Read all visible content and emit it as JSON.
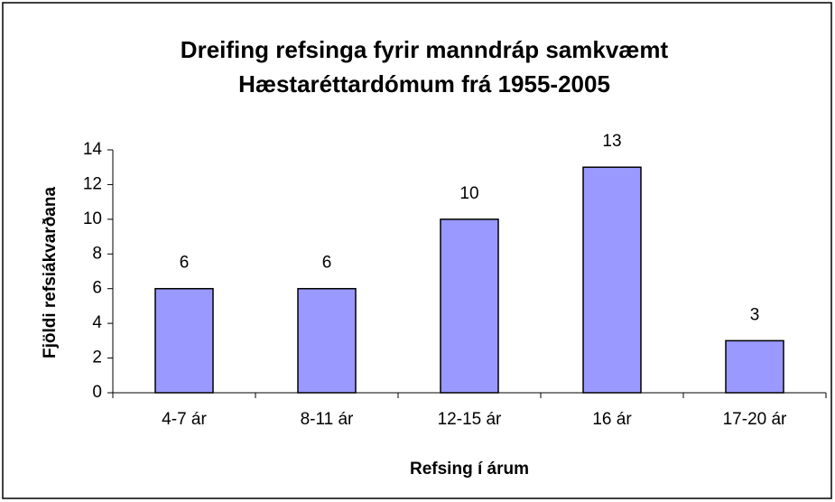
{
  "chart_data": {
    "type": "bar",
    "title": "Dreifing refsinga fyrir manndráp samkvæmt Hæstaréttardómum frá 1955-2005",
    "x_label": "Refsing í árum",
    "y_label": "Fjöldi refsiákvarðana",
    "categories": [
      "4-7 ár",
      "8-11 ár",
      "12-15 ár",
      "16 ár",
      "17-20 ár"
    ],
    "values": [
      6,
      6,
      10,
      13,
      3
    ],
    "color": "#9999ff",
    "ylim": [
      0,
      14
    ],
    "yticks": [
      0,
      2,
      4,
      6,
      8,
      10,
      12,
      14
    ],
    "grid": false
  }
}
